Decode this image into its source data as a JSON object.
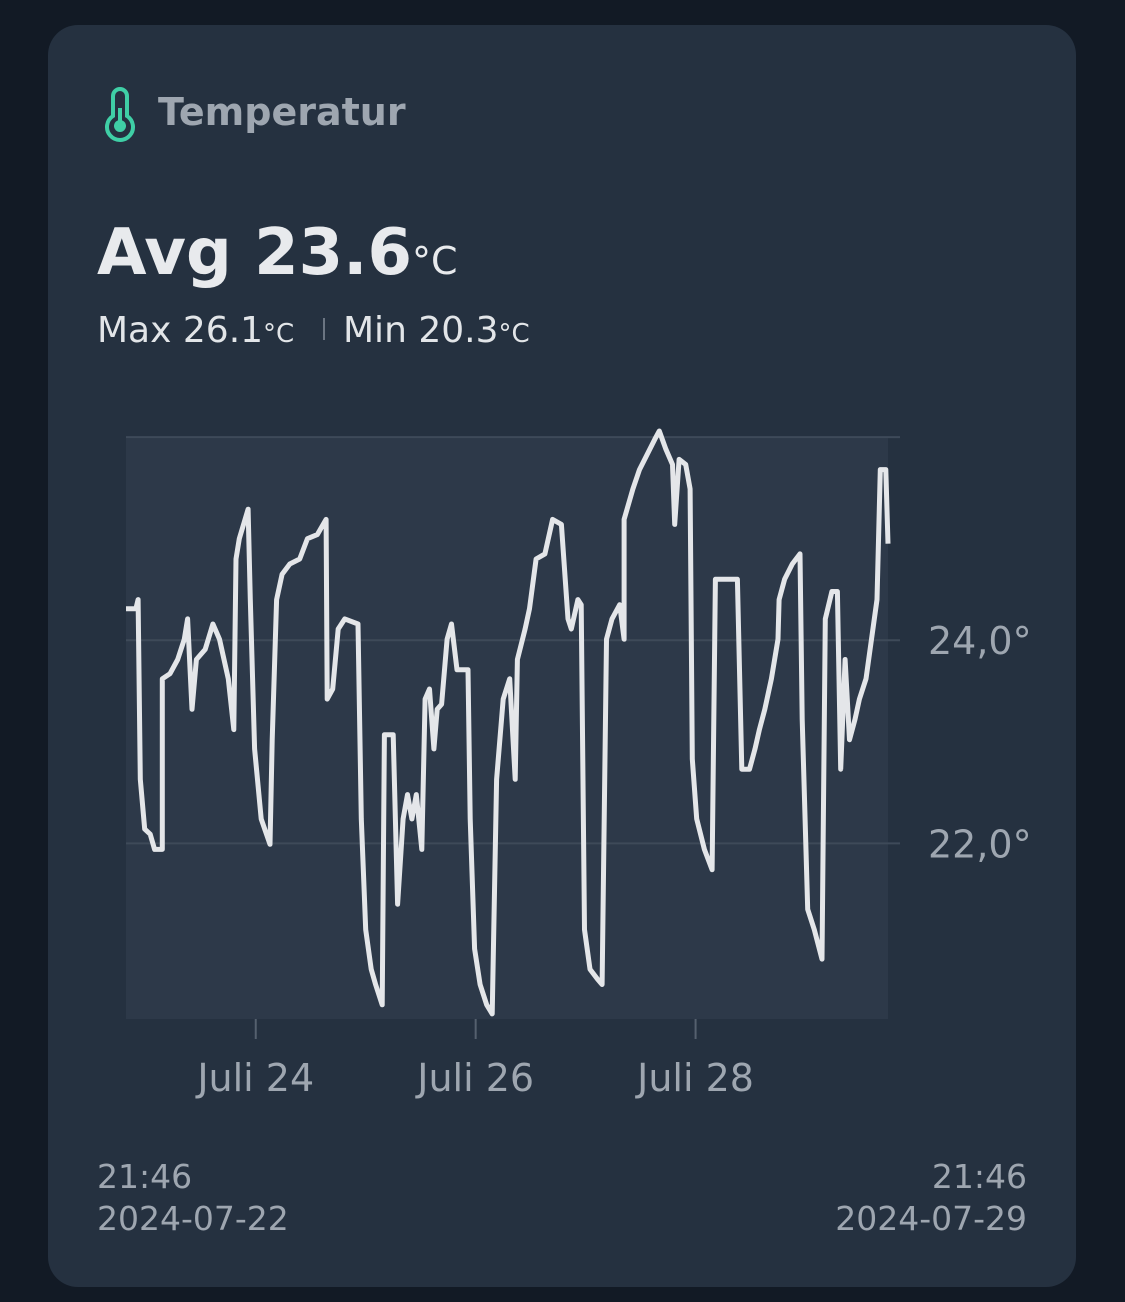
{
  "header": {
    "title": "Temperatur"
  },
  "summary": {
    "avg_label": "Avg",
    "avg": 23.6,
    "max_label": "Max",
    "max": 26.1,
    "min_label": "Min",
    "min": 20.3,
    "unit": "°C"
  },
  "chart_data": {
    "type": "line",
    "color": "#e4e6e9",
    "grid": true,
    "x": [
      22.82,
      22.91,
      22.93,
      22.95,
      22.99,
      23.04,
      23.08,
      23.15,
      23.15,
      23.22,
      23.29,
      23.35,
      23.38,
      23.42,
      23.46,
      23.54,
      23.61,
      23.67,
      23.75,
      23.8,
      23.82,
      23.85,
      23.93,
      23.95,
      23.99,
      24.05,
      24.13,
      24.15,
      24.19,
      24.24,
      24.31,
      24.4,
      24.47,
      24.56,
      24.64,
      24.65,
      24.7,
      24.75,
      24.81,
      24.93,
      24.96,
      25.0,
      25.05,
      25.09,
      25.15,
      25.17,
      25.25,
      25.29,
      25.34,
      25.38,
      25.42,
      25.46,
      25.51,
      25.54,
      25.58,
      25.62,
      25.65,
      25.69,
      25.74,
      25.78,
      25.83,
      25.93,
      25.95,
      25.99,
      26.04,
      26.1,
      26.15,
      26.19,
      26.25,
      26.31,
      26.36,
      26.38,
      26.45,
      26.49,
      26.55,
      26.63,
      26.7,
      26.78,
      26.84,
      26.87,
      26.93,
      26.96,
      26.99,
      27.04,
      27.11,
      27.15,
      27.19,
      27.24,
      27.31,
      27.35,
      27.35,
      27.43,
      27.49,
      27.56,
      27.63,
      27.67,
      27.73,
      27.79,
      27.81,
      27.85,
      27.91,
      27.95,
      27.97,
      28.01,
      28.08,
      28.15,
      28.18,
      28.38,
      28.42,
      28.49,
      28.54,
      28.58,
      28.63,
      28.69,
      28.75,
      28.76,
      28.81,
      28.88,
      28.95,
      28.97,
      29.02,
      29.08,
      29.15,
      29.18,
      29.24,
      29.29,
      29.32,
      29.36,
      29.4,
      29.45,
      29.49,
      29.55,
      29.6,
      29.65,
      29.68,
      29.73,
      29.75
    ],
    "values": [
      24.31,
      24.31,
      24.4,
      22.63,
      22.14,
      22.09,
      21.94,
      21.94,
      23.62,
      23.67,
      23.81,
      24.01,
      24.21,
      23.32,
      23.81,
      23.91,
      24.16,
      24.01,
      23.62,
      23.12,
      24.8,
      25.0,
      25.29,
      24.4,
      22.93,
      22.24,
      21.99,
      23.02,
      24.4,
      24.65,
      24.75,
      24.8,
      25.0,
      25.04,
      25.19,
      23.42,
      23.52,
      24.11,
      24.21,
      24.16,
      22.24,
      21.15,
      20.76,
      20.61,
      20.41,
      23.07,
      23.07,
      21.4,
      22.24,
      22.48,
      22.24,
      22.48,
      21.94,
      23.42,
      23.52,
      22.93,
      23.32,
      23.37,
      24.01,
      24.16,
      23.71,
      23.71,
      22.24,
      20.96,
      20.61,
      20.41,
      20.32,
      22.63,
      23.42,
      23.62,
      22.63,
      23.81,
      24.11,
      24.31,
      24.8,
      24.85,
      25.19,
      25.14,
      24.21,
      24.11,
      24.4,
      24.35,
      21.15,
      20.76,
      20.66,
      20.61,
      24.01,
      24.21,
      24.35,
      24.01,
      25.19,
      25.49,
      25.68,
      25.83,
      25.98,
      26.06,
      25.88,
      25.73,
      25.14,
      25.78,
      25.73,
      25.49,
      22.83,
      22.24,
      21.94,
      21.74,
      24.6,
      24.6,
      22.73,
      22.73,
      22.93,
      23.12,
      23.32,
      23.62,
      24.01,
      24.4,
      24.6,
      24.75,
      24.85,
      23.22,
      21.35,
      21.15,
      20.86,
      24.21,
      24.48,
      24.48,
      22.73,
      23.81,
      23.02,
      23.22,
      23.42,
      23.62,
      24.01,
      24.4,
      25.68,
      25.68,
      24.95
    ],
    "xlim": [
      22.82,
      29.75
    ],
    "xticks": [
      {
        "value": 24,
        "label": "Juli 24"
      },
      {
        "value": 26,
        "label": "Juli 26"
      },
      {
        "value": 28,
        "label": "Juli 28"
      }
    ],
    "ylim": [
      20.27,
      26.07
    ],
    "yticks": [
      {
        "value": 22,
        "label": "22,0°"
      },
      {
        "value": 24,
        "label": "24,0°"
      },
      {
        "value": 26,
        "label": null
      }
    ]
  },
  "footer": {
    "start_time": "21:46",
    "start_date": "2024-07-22",
    "end_time": "21:46",
    "end_date": "2024-07-29"
  }
}
